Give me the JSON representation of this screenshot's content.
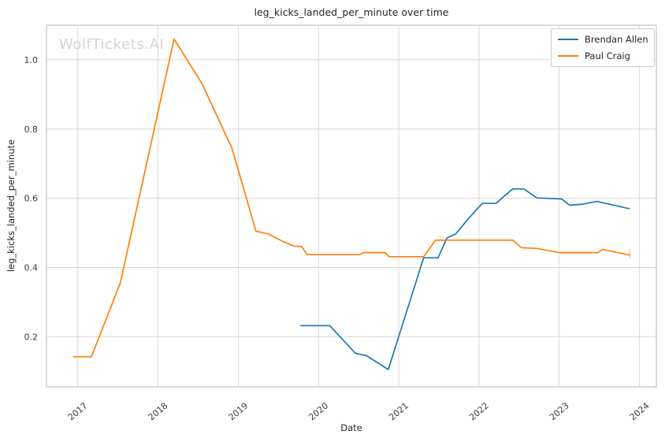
{
  "figure": {
    "title": "leg_kicks_landed_per_minute over time",
    "xlabel": "Date",
    "ylabel": "leg_kicks_landed_per_minute",
    "watermark": "WolfTickets.AI"
  },
  "legend": {
    "position": "upper right",
    "entries": [
      {
        "label": "Brendan Allen",
        "color": "#1f77b4"
      },
      {
        "label": "Paul Craig",
        "color": "#ff7f0e"
      }
    ]
  },
  "chart_data": {
    "type": "line",
    "title": "leg_kicks_landed_per_minute over time",
    "xlabel": "Date",
    "ylabel": "leg_kicks_landed_per_minute",
    "xlim": [
      2016.61,
      2024.21
    ],
    "ylim": [
      0.055,
      1.1
    ],
    "x_ticks": [
      2017,
      2018,
      2019,
      2020,
      2021,
      2022,
      2023,
      2024
    ],
    "x_tick_labels": [
      "2017",
      "2018",
      "2019",
      "2020",
      "2021",
      "2022",
      "2023",
      "2024"
    ],
    "y_ticks": [
      0.2,
      0.4,
      0.6,
      0.8,
      1.0
    ],
    "y_tick_labels": [
      "0.2",
      "0.4",
      "0.6",
      "0.8",
      "1.0"
    ],
    "grid": true,
    "legend_position": "upper right",
    "series": [
      {
        "name": "Brendan Allen",
        "color": "#1f77b4",
        "points": [
          [
            2019.78,
            0.232
          ],
          [
            2020.14,
            0.232
          ],
          [
            2020.46,
            0.152
          ],
          [
            2020.6,
            0.145
          ],
          [
            2020.87,
            0.105
          ],
          [
            2021.31,
            0.428
          ],
          [
            2021.49,
            0.428
          ],
          [
            2021.6,
            0.485
          ],
          [
            2021.71,
            0.497
          ],
          [
            2021.86,
            0.539
          ],
          [
            2022.04,
            0.585
          ],
          [
            2022.21,
            0.585
          ],
          [
            2022.42,
            0.627
          ],
          [
            2022.56,
            0.627
          ],
          [
            2022.72,
            0.601
          ],
          [
            2023.03,
            0.598
          ],
          [
            2023.13,
            0.58
          ],
          [
            2023.3,
            0.583
          ],
          [
            2023.47,
            0.591
          ],
          [
            2023.87,
            0.57
          ]
        ]
      },
      {
        "name": "Paul Craig",
        "color": "#ff7f0e",
        "points": [
          [
            2016.95,
            0.142
          ],
          [
            2017.17,
            0.142
          ],
          [
            2017.53,
            0.355
          ],
          [
            2018.2,
            1.06
          ],
          [
            2018.55,
            0.93
          ],
          [
            2018.92,
            0.745
          ],
          [
            2019.22,
            0.505
          ],
          [
            2019.37,
            0.497
          ],
          [
            2019.55,
            0.476
          ],
          [
            2019.69,
            0.462
          ],
          [
            2019.79,
            0.46
          ],
          [
            2019.86,
            0.437
          ],
          [
            2020.51,
            0.437
          ],
          [
            2020.56,
            0.443
          ],
          [
            2020.83,
            0.443
          ],
          [
            2020.88,
            0.431
          ],
          [
            2021.31,
            0.431
          ],
          [
            2021.46,
            0.479
          ],
          [
            2022.42,
            0.479
          ],
          [
            2022.53,
            0.457
          ],
          [
            2022.72,
            0.455
          ],
          [
            2023.0,
            0.443
          ],
          [
            2023.48,
            0.443
          ],
          [
            2023.54,
            0.452
          ],
          [
            2023.87,
            0.436
          ]
        ],
        "end_tick": {
          "x": 2023.88,
          "y1": 0.427,
          "y2": 0.454
        }
      }
    ],
    "style": {
      "grid_color": "#d9d9d9",
      "spine_color": "#c3c3c3",
      "tick_label_color": "#3b3b3b",
      "title_color": "#262626",
      "watermark_color": "#d4d4d4",
      "background": "#ffffff",
      "line_width": 1.7
    }
  }
}
